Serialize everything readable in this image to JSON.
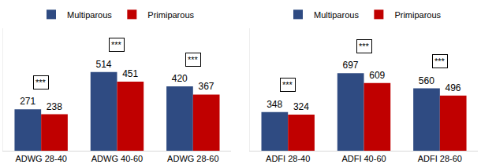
{
  "chart_data": [
    {
      "type": "bar",
      "categories": [
        "ADWG 28-40",
        "ADWG 40-60",
        "ADWG 28-60"
      ],
      "series": [
        {
          "name": "Multiparous",
          "color": "#2f4b82",
          "values": [
            271,
            514,
            420
          ]
        },
        {
          "name": "Primiparous",
          "color": "#c00000",
          "values": [
            238,
            451,
            367
          ]
        }
      ],
      "annotations": [
        "***",
        "***",
        "***"
      ],
      "ylim": [
        0,
        800
      ],
      "yticks": [],
      "data_labels": true,
      "tick_labels": "x",
      "legend": "top",
      "grid": false
    },
    {
      "type": "bar",
      "categories": [
        "ADFI 28-40",
        "ADFI 40-60",
        "ADFI 28-60"
      ],
      "series": [
        {
          "name": "Multiparous",
          "color": "#2f4b82",
          "values": [
            348,
            697,
            560
          ]
        },
        {
          "name": "Primiparous",
          "color": "#c00000",
          "values": [
            324,
            609,
            496
          ]
        }
      ],
      "annotations": [
        "***",
        "***",
        "***"
      ],
      "ylim": [
        0,
        1100
      ],
      "yticks": [],
      "data_labels": true,
      "tick_labels": "x",
      "legend": "top",
      "grid": false
    }
  ]
}
